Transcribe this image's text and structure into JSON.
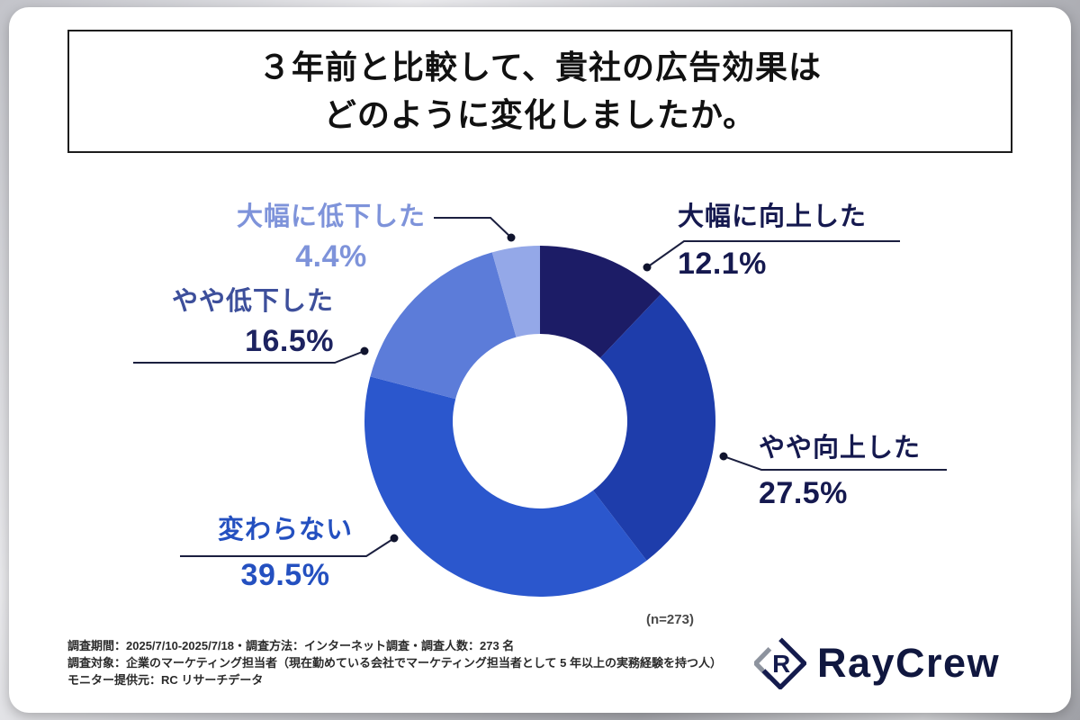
{
  "title": {
    "line1": "３年前と比較して、貴社の広告効果は",
    "line2": "どのように変化しましたか。"
  },
  "chart_data": {
    "type": "pie",
    "donut": true,
    "title": "３年前と比較して、貴社の広告効果はどのように変化しましたか。",
    "start_angle_deg": 0,
    "direction": "clockwise",
    "sample_label": "(n=273)",
    "legend_position": "around-chart",
    "segments": [
      {
        "label": "大幅に向上した",
        "value": 12.1,
        "pct_display": "12.1%",
        "color": "#1c1c66",
        "label_color": "#15194f",
        "pct_color": "#15194f"
      },
      {
        "label": "やや向上した",
        "value": 27.5,
        "pct_display": "27.5%",
        "color": "#1e3dab",
        "label_color": "#15194f",
        "pct_color": "#15194f"
      },
      {
        "label": "変わらない",
        "value": 39.5,
        "pct_display": "39.5%",
        "color": "#2b57cd",
        "label_color": "#2450c0",
        "pct_color": "#2450c0"
      },
      {
        "label": "やや低下した",
        "value": 16.5,
        "pct_display": "16.5%",
        "color": "#5c7cd9",
        "label_color": "#3d4f9b",
        "pct_color": "#1d2360"
      },
      {
        "label": "大幅に低下した",
        "value": 4.4,
        "pct_display": "4.4%",
        "color": "#94a8e8",
        "label_color": "#7e93da",
        "pct_color": "#7e93da"
      }
    ]
  },
  "footer": {
    "line1": "調査期間：2025/7/10-2025/7/18・調査方法：インターネット調査・調査人数：273 名",
    "line2": "調査対象：企業のマーケティング担当者（現在勤めている会社でマーケティング担当者として 5 年以上の実務経験を持つ人）",
    "line3": "モニター提供元：RC リサーチデータ"
  },
  "logo": {
    "text": "RayCrew",
    "mark": "R",
    "brand_color": "#10173f",
    "mark_gray": "#8d939e"
  }
}
